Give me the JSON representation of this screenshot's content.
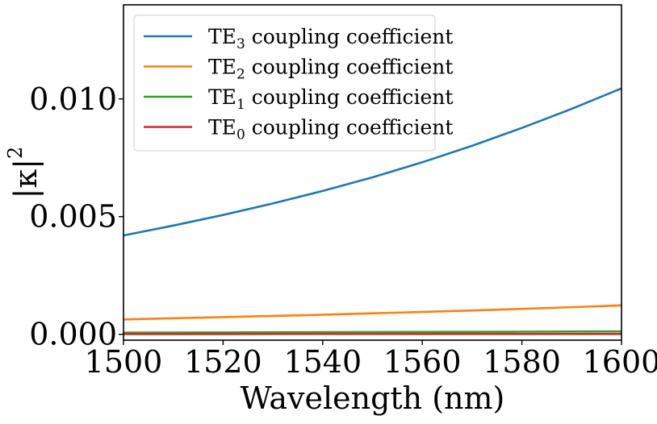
{
  "chart_data": {
    "type": "line",
    "title": "",
    "xlabel": "Wavelength (nm)",
    "ylabel": "|κ|",
    "ylabel_exponent": "2",
    "xlim": [
      1500,
      1600
    ],
    "ylim": [
      -0.00025,
      0.014
    ],
    "xticks": [
      1500,
      1520,
      1540,
      1560,
      1580,
      1600
    ],
    "xtick_labels": [
      "1500",
      "1520",
      "1540",
      "1560",
      "1580",
      "1600"
    ],
    "yticks": [
      0,
      0.005,
      0.01
    ],
    "ytick_labels": [
      "0.000",
      "0.005",
      "0.010"
    ],
    "grid": false,
    "legend_position": "top-left",
    "x": [
      1500,
      1510,
      1520,
      1530,
      1540,
      1550,
      1560,
      1570,
      1580,
      1590,
      1600
    ],
    "series": [
      {
        "name": "TE3 coupling coefficient",
        "legend_base": "TE",
        "legend_sub": "3",
        "legend_rest": " coupling coefficient",
        "color": "#1f77b4",
        "values": [
          0.0042,
          0.00462,
          0.00507,
          0.00556,
          0.00609,
          0.00667,
          0.00731,
          0.00801,
          0.00877,
          0.00958,
          0.01045
        ]
      },
      {
        "name": "TE2 coupling coefficient",
        "legend_base": "TE",
        "legend_sub": "2",
        "legend_rest": " coupling coefficient",
        "color": "#ff7f0e",
        "values": [
          0.00063,
          0.00068,
          0.00073,
          0.00078,
          0.00083,
          0.00089,
          0.00095,
          0.00101,
          0.00108,
          0.00115,
          0.00123
        ]
      },
      {
        "name": "TE1 coupling coefficient",
        "legend_base": "TE",
        "legend_sub": "1",
        "legend_rest": " coupling coefficient",
        "color": "#2ca02c",
        "values": [
          7e-05,
          7.5e-05,
          8e-05,
          8.5e-05,
          9e-05,
          9.5e-05,
          0.0001,
          0.000105,
          0.00011,
          0.000115,
          0.00012
        ]
      },
      {
        "name": "TE0 coupling coefficient",
        "legend_base": "TE",
        "legend_sub": "0",
        "legend_rest": " coupling coefficient",
        "color": "#d62728",
        "values": [
          1e-05,
          1e-05,
          1e-05,
          1.1e-05,
          1.1e-05,
          1.1e-05,
          1.2e-05,
          1.2e-05,
          1.2e-05,
          1.3e-05,
          1.3e-05
        ]
      }
    ]
  }
}
